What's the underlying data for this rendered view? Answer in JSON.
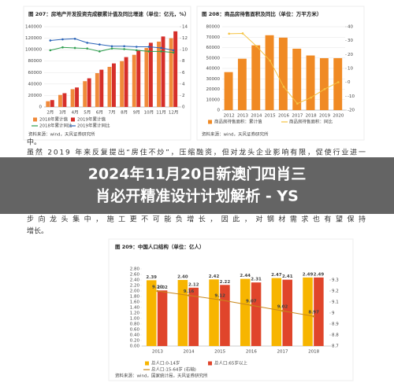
{
  "top_text": "中。",
  "paragraph": [
    "虽然 2019 年来反复提出“房住不炒”，压缩融资，但对龙头企业影响有限，促使行业进一",
    "步向龙头集中，施工更不可能负增长，因此，对钢材需求也有望保持"
  ],
  "end_text": "增长。",
  "banner": {
    "lines": [
      "2024年11月20日新澳门四肖三",
      "肖必开精准设计计划解析 - YS"
    ]
  },
  "chart_data": [
    {
      "type": "bar",
      "title": "图 207：房地产开发投资完成额累计值及同比增速（单位：亿元，%）",
      "source": "资料来源：wind，天风证券研究所",
      "categories": [
        "2月",
        "3月",
        "4月",
        "5月",
        "6月",
        "7月",
        "8月",
        "9月",
        "10月",
        "11月",
        "12月"
      ],
      "series": [
        {
          "name": "2018年累计值",
          "color": "#f08a3a",
          "values": [
            10000,
            21000,
            31000,
            45000,
            59000,
            70000,
            80000,
            91000,
            103000,
            114000,
            120000
          ]
        },
        {
          "name": "2019年累计值",
          "color": "#d62f2a",
          "values": [
            12000,
            24000,
            34000,
            50000,
            65000,
            76000,
            87000,
            99000,
            112000,
            123000,
            132000
          ]
        },
        {
          "name": "2018年累计同比",
          "color": "#2f9e4f",
          "mark": "line",
          "axis": "y2",
          "values": [
            9.9,
            10.4,
            10.3,
            10.2,
            9.7,
            10.2,
            10.1,
            9.9,
            9.7,
            9.7,
            9.5
          ]
        },
        {
          "name": "2019年累计同比",
          "color": "#2a63b8",
          "mark": "line",
          "axis": "y2",
          "values": [
            11.6,
            11.8,
            11.9,
            11.2,
            10.9,
            10.6,
            10.6,
            10.5,
            10.5,
            10.3,
            9.9
          ]
        }
      ],
      "ylim": [
        0,
        140000
      ],
      "yticks": [
        0,
        20000,
        40000,
        60000,
        80000,
        100000,
        120000,
        140000
      ],
      "y2lim": [
        0,
        14
      ],
      "y2ticks": [
        0,
        2,
        4,
        6,
        8,
        10,
        12,
        14
      ],
      "grid": true
    },
    {
      "type": "bar",
      "title": "图 208：商品房待售面积及同比（单位：万平方米）",
      "source": "资料来源：wind，天风证券研究所",
      "categories": [
        "2012",
        "2013",
        "2014",
        "2015",
        "2016",
        "2017",
        "2018",
        "2019",
        "2020"
      ],
      "series": [
        {
          "name": "商品房待售面积：累计值",
          "color": "#f08a24",
          "values": [
            36460,
            49295,
            62169,
            71853,
            69539,
            58923,
            52414,
            49821,
            49850
          ]
        },
        {
          "name": "商品房待售面积：同比",
          "color": "#f5c342",
          "mark": "line",
          "axis": "y2",
          "values": [
            35,
            35.2,
            26.1,
            15.6,
            -3.2,
            -15.3,
            -11,
            -4.9,
            0.1
          ]
        }
      ],
      "ylim": [
        0,
        80000
      ],
      "yticks": [
        0,
        10000,
        20000,
        30000,
        40000,
        50000,
        60000,
        70000,
        80000
      ],
      "y2lim": [
        -20,
        40
      ],
      "y2ticks": [
        -20,
        -10,
        0,
        10,
        20,
        30,
        40
      ],
      "grid": true
    },
    {
      "type": "bar",
      "title": "图 209：中国人口结构（单位：亿人）",
      "source": "资料来源：wind，国家统计局，天风证券研究所",
      "categories": [
        "2013",
        "2014",
        "2015",
        "2016",
        "2017",
        "2018"
      ],
      "series": [
        {
          "name": "总人口:0-14岁",
          "color": "#f7b500",
          "values": [
            2.39,
            2.4,
            2.42,
            2.44,
            2.47,
            2.49
          ],
          "value_labels": [
            "2.39",
            "2.40",
            "2.42",
            "2.44",
            "2.47",
            "2.49"
          ]
        },
        {
          "name": "总人口:65岁以上",
          "color": "#e0452b",
          "values": [
            2.02,
            2.12,
            2.22,
            2.31,
            2.41,
            2.49
          ],
          "value_labels": [
            "2.02",
            "2.12",
            "2.22",
            "2.31",
            "2.41",
            "2.49"
          ]
        },
        {
          "name": "总人口:15-64岁 (右轴)",
          "color": "#c9881c",
          "mark": "line",
          "axis": "y2",
          "values": [
            9.2,
            9.16,
            9.12,
            9.07,
            9.02,
            8.97
          ],
          "value_labels": [
            "9.20",
            "9.16",
            "9.12",
            "9.07",
            "9.02",
            "8.97"
          ]
        }
      ],
      "ylim": [
        0,
        2.8
      ],
      "yticks": [
        {
          "value": 0,
          "label": "0.00"
        },
        {
          "value": 0.2,
          "label": "0.20"
        },
        {
          "value": 0.4,
          "label": "0.40"
        },
        {
          "value": 0.6,
          "label": "0.60"
        },
        {
          "value": 0.8,
          "label": "0.80"
        },
        {
          "value": 1,
          "label": "1.00"
        },
        {
          "value": 1.2,
          "label": "1.20"
        },
        {
          "value": 1.4,
          "label": "1.40"
        },
        {
          "value": 1.6,
          "label": "1.60"
        },
        {
          "value": 1.8,
          "label": "1.80"
        },
        {
          "value": 2,
          "label": "2.00"
        },
        {
          "value": 2.2,
          "label": "2.20"
        },
        {
          "value": 2.4,
          "label": "2.40"
        },
        {
          "value": 2.6,
          "label": "2.60"
        },
        {
          "value": 2.8,
          "label": "2.80"
        }
      ],
      "y2lim": [
        8.7,
        9.4
      ],
      "y2ticks": [
        8.7,
        8.8,
        8.9,
        9,
        9.1,
        9.2,
        9.3
      ],
      "grid": false,
      "data_labels": true
    }
  ]
}
